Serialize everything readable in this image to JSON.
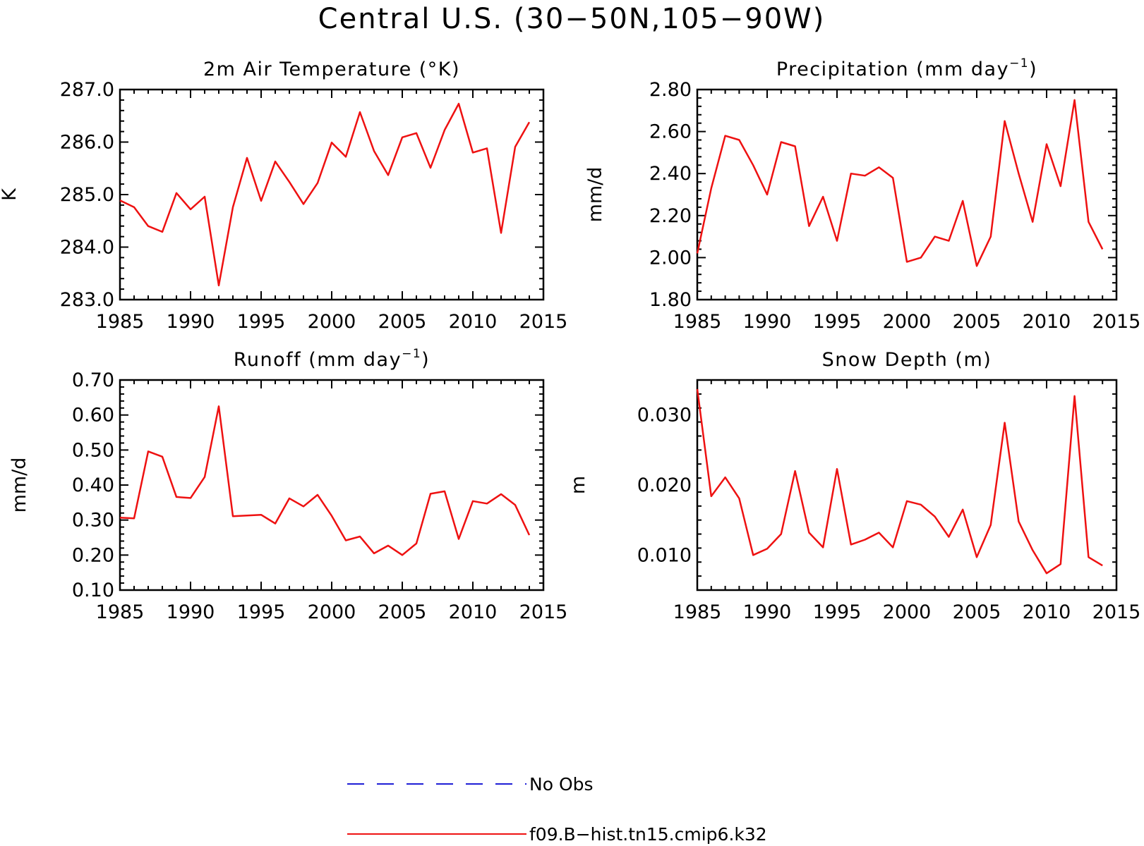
{
  "figure": {
    "title": "Central U.S. (30−50N,105−90W)"
  },
  "legend": {
    "placement": "bottom-center",
    "items": [
      {
        "label": "No Obs",
        "color": "#1f1fd6",
        "style": "dashed"
      },
      {
        "label": "f09.B−hist.tn15.cmip6.k32",
        "color": "#ee1111",
        "style": "solid"
      }
    ]
  },
  "chart_data": [
    {
      "type": "line",
      "title": "2m Air Temperature (°K)",
      "ylabel": "K",
      "xlabel": "",
      "xlim": [
        1985,
        2015
      ],
      "ylim": [
        283.0,
        287.0
      ],
      "xticks": [
        "1985",
        "1990",
        "1995",
        "2000",
        "2005",
        "2010",
        "2015"
      ],
      "yticks": [
        "283.0",
        "284.0",
        "285.0",
        "286.0",
        "287.0"
      ],
      "x": [
        1985,
        1986,
        1987,
        1988,
        1989,
        1990,
        1991,
        1992,
        1993,
        1994,
        1995,
        1996,
        1997,
        1998,
        1999,
        2000,
        2001,
        2002,
        2003,
        2004,
        2005,
        2006,
        2007,
        2008,
        2009,
        2010,
        2011,
        2012,
        2013,
        2014
      ],
      "series": [
        {
          "name": "f09.B−hist.tn15.cmip6.k32",
          "color": "#ee1111",
          "values": [
            284.89,
            284.76,
            284.4,
            284.29,
            285.03,
            284.72,
            284.96,
            283.27,
            284.76,
            285.7,
            284.88,
            285.63,
            285.24,
            284.82,
            285.22,
            285.99,
            285.72,
            286.57,
            285.83,
            285.37,
            286.09,
            286.17,
            285.51,
            286.23,
            286.73,
            285.8,
            285.88,
            284.27,
            285.91,
            286.38
          ]
        }
      ]
    },
    {
      "type": "line",
      "title": "Precipitation (mm day",
      "title_sup": "−1",
      "title_end": ")",
      "ylabel": "mm/d",
      "xlabel": "",
      "xlim": [
        1985,
        2015
      ],
      "ylim": [
        1.8,
        2.8
      ],
      "xticks": [
        "1985",
        "1990",
        "1995",
        "2000",
        "2005",
        "2010",
        "2015"
      ],
      "yticks": [
        "1.80",
        "2.00",
        "2.20",
        "2.40",
        "2.60",
        "2.80"
      ],
      "x": [
        1985,
        1986,
        1987,
        1988,
        1989,
        1990,
        1991,
        1992,
        1993,
        1994,
        1995,
        1996,
        1997,
        1998,
        1999,
        2000,
        2001,
        2002,
        2003,
        2004,
        2005,
        2006,
        2007,
        2008,
        2009,
        2010,
        2011,
        2012,
        2013,
        2014
      ],
      "series": [
        {
          "name": "f09.B−hist.tn15.cmip6.k32",
          "color": "#ee1111",
          "values": [
            2.02,
            2.33,
            2.58,
            2.56,
            2.44,
            2.3,
            2.55,
            2.53,
            2.15,
            2.29,
            2.08,
            2.4,
            2.39,
            2.43,
            2.38,
            1.98,
            2.0,
            2.1,
            2.08,
            2.27,
            1.96,
            2.1,
            2.65,
            2.4,
            2.17,
            2.54,
            2.34,
            2.75,
            2.17,
            2.04
          ]
        }
      ]
    },
    {
      "type": "line",
      "title": "Runoff (mm day",
      "title_sup": "−1",
      "title_end": ")",
      "ylabel": "mm/d",
      "xlabel": "",
      "xlim": [
        1985,
        2015
      ],
      "ylim": [
        0.1,
        0.7
      ],
      "xticks": [
        "1985",
        "1990",
        "1995",
        "2000",
        "2005",
        "2010",
        "2015"
      ],
      "yticks": [
        "0.10",
        "0.20",
        "0.30",
        "0.40",
        "0.50",
        "0.60",
        "0.70"
      ],
      "x": [
        1985,
        1986,
        1987,
        1988,
        1989,
        1990,
        1991,
        1992,
        1993,
        1994,
        1995,
        1996,
        1997,
        1998,
        1999,
        2000,
        2001,
        2002,
        2003,
        2004,
        2005,
        2006,
        2007,
        2008,
        2009,
        2010,
        2011,
        2012,
        2013,
        2014
      ],
      "series": [
        {
          "name": "f09.B−hist.tn15.cmip6.k32",
          "color": "#ee1111",
          "values": [
            0.307,
            0.305,
            0.496,
            0.481,
            0.366,
            0.363,
            0.423,
            0.625,
            0.311,
            0.313,
            0.315,
            0.29,
            0.362,
            0.339,
            0.372,
            0.312,
            0.242,
            0.253,
            0.205,
            0.227,
            0.2,
            0.233,
            0.375,
            0.382,
            0.246,
            0.354,
            0.347,
            0.374,
            0.343,
            0.257
          ]
        }
      ]
    },
    {
      "type": "line",
      "title": "Snow Depth (m)",
      "ylabel": "m",
      "xlabel": "",
      "xlim": [
        1985,
        2015
      ],
      "ylim": [
        0.005,
        0.035
      ],
      "xticks": [
        "1985",
        "1990",
        "1995",
        "2000",
        "2005",
        "2010",
        "2015"
      ],
      "yticks": [
        "0.010",
        "0.020",
        "0.030"
      ],
      "x": [
        1985,
        1986,
        1987,
        1988,
        1989,
        1990,
        1991,
        1992,
        1993,
        1994,
        1995,
        1996,
        1997,
        1998,
        1999,
        2000,
        2001,
        2002,
        2003,
        2004,
        2005,
        2006,
        2007,
        2008,
        2009,
        2010,
        2011,
        2012,
        2013,
        2014
      ],
      "series": [
        {
          "name": "f09.B−hist.tn15.cmip6.k32",
          "color": "#ee1111",
          "values": [
            0.0337,
            0.0184,
            0.0211,
            0.0181,
            0.01,
            0.0109,
            0.013,
            0.022,
            0.0132,
            0.0111,
            0.0223,
            0.0115,
            0.0122,
            0.0132,
            0.0111,
            0.0177,
            0.0172,
            0.0155,
            0.0126,
            0.0165,
            0.0097,
            0.0143,
            0.0289,
            0.0148,
            0.0107,
            0.0074,
            0.0087,
            0.0327,
            0.0097,
            0.0085
          ]
        }
      ]
    }
  ]
}
